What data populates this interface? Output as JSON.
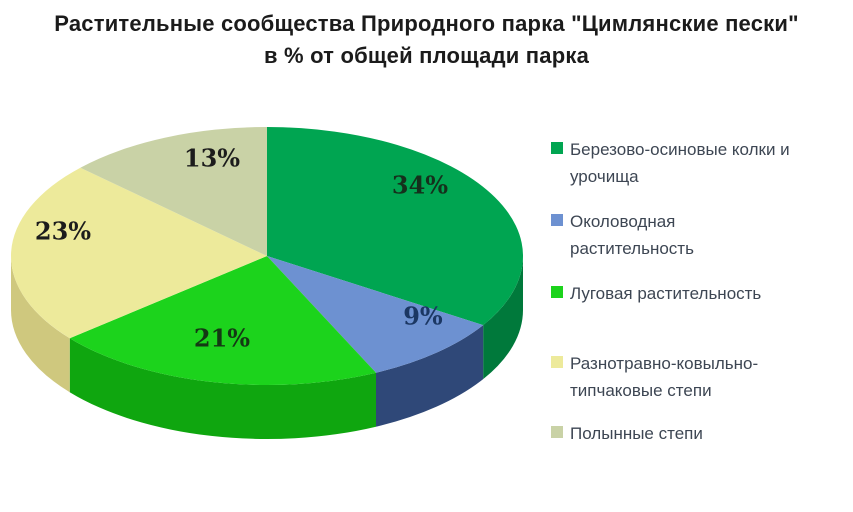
{
  "title": {
    "line1": "Растительные сообщества Природного парка \"Цимлянские пески\"",
    "line2": "в % от общей площади парка"
  },
  "chart_data": {
    "type": "pie",
    "style": "3d",
    "title": "Растительные сообщества Природного парка \"Цимлянские пески\" в % от общей площади парка",
    "unit": "%",
    "start_angle_deg": 0,
    "direction": "clockwise",
    "legend_position": "right",
    "slices": [
      {
        "label": "Березово-осиновые колки и урочища",
        "value": 34,
        "display": "34%",
        "color": "#00A551",
        "side_color": "#00793B",
        "label_color": "#15301c"
      },
      {
        "label": "Околоводная растительность",
        "value": 9,
        "display": "9%",
        "color": "#6D91D1",
        "side_color": "#2F4878",
        "label_color": "#1b3763"
      },
      {
        "label": "Луговая растительность",
        "value": 21,
        "display": "21%",
        "color": "#1CD31C",
        "side_color": "#0FA60F",
        "label_color": "#143814"
      },
      {
        "label": "Разнотравно-ковыльно-типчаковые степи",
        "value": 23,
        "display": "23%",
        "color": "#EDEA9B",
        "side_color": "#CFC87E",
        "label_color": "#1c1c1c"
      },
      {
        "label": "Полынные степи",
        "value": 13,
        "display": "13%",
        "color": "#C9D2A6",
        "side_color": "#A9B486",
        "label_color": "#1c1c1c"
      }
    ]
  }
}
